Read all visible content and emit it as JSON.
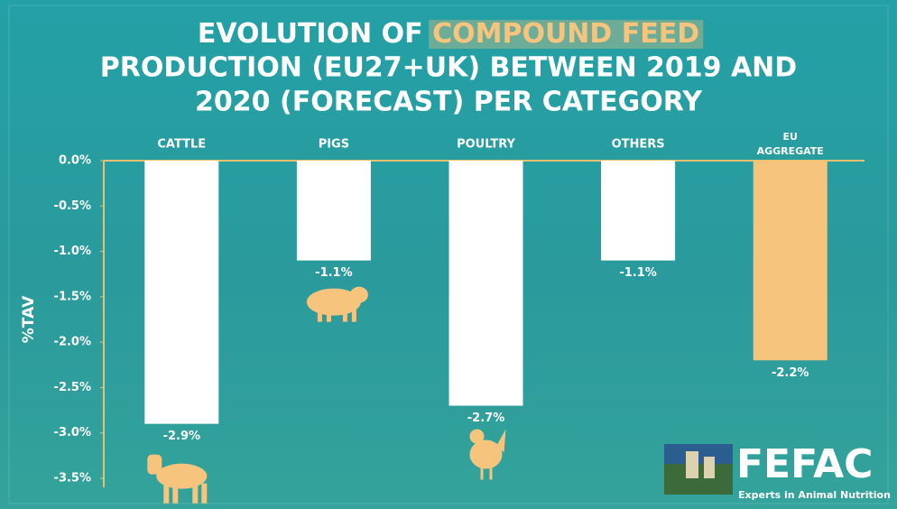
{
  "chart_data": {
    "type": "bar",
    "title": [
      "EVOLUTION OF",
      "PRODUCTION (EU27+UK) BETWEEN 2019 AND",
      "2020 (FORECAST) PER CATEGORY"
    ],
    "title_highlight": "COMPOUND FEED",
    "y_label": "%TAV",
    "categories": [
      "CATTLE",
      "PIGS",
      "POULTRY",
      "OTHERS",
      "EU AGGREGATE"
    ],
    "values": [
      -2.9,
      -1.1,
      -2.7,
      -1.1,
      -2.2
    ],
    "value_labels": [
      "-2.9%",
      "-1.1%",
      "-2.7%",
      "-1.1%",
      "-2.2%"
    ],
    "colors": [
      "#ffffff",
      "#ffffff",
      "#ffffff",
      "#ffffff",
      "#f7c47e"
    ],
    "ylim": [
      -3.5,
      0
    ],
    "yticks": [
      {
        "value": 0,
        "label": "0.0%"
      },
      {
        "value": -0.5,
        "label": "-0.5%"
      },
      {
        "value": -1,
        "label": "-1.0%"
      },
      {
        "value": -1.5,
        "label": "-1.5%"
      },
      {
        "value": -2,
        "label": "-2.0%"
      },
      {
        "value": -2.5,
        "label": "-2.5%"
      },
      {
        "value": -3,
        "label": "-3.0%"
      },
      {
        "value": -3.5,
        "label": "-3.5%"
      }
    ],
    "grid": false,
    "logo": "FEFAC",
    "logo_tagline": "Experts in Animal Nutrition"
  }
}
